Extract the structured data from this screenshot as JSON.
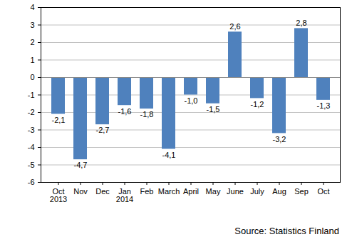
{
  "chart_data": {
    "type": "bar",
    "caption": "Source: Statistics Finland",
    "categories": [
      "Oct\n2013",
      "Nov",
      "Dec",
      "Jan\n2014",
      "Feb",
      "March",
      "April",
      "May",
      "June",
      "July",
      "Aug",
      "Sep",
      "Oct"
    ],
    "values": [
      -2.1,
      -4.7,
      -2.7,
      -1.6,
      -1.8,
      -4.1,
      -1.0,
      -1.5,
      2.6,
      -1.2,
      -3.2,
      2.8,
      -1.3
    ],
    "value_labels": [
      "-2,1",
      "-4,7",
      "-2,7",
      "-1,6",
      "-1,8",
      "-4,1",
      "-1,0",
      "-1,5",
      "2,6",
      "-1,2",
      "-3,2",
      "2,8",
      "-1,3"
    ],
    "color": "#4f81bd",
    "ylim": [
      -6,
      4
    ],
    "yticks": [
      -6,
      -5,
      -4,
      -3,
      -2,
      -1,
      0,
      1,
      2,
      3,
      4
    ],
    "grid": true,
    "data_labels": true
  }
}
